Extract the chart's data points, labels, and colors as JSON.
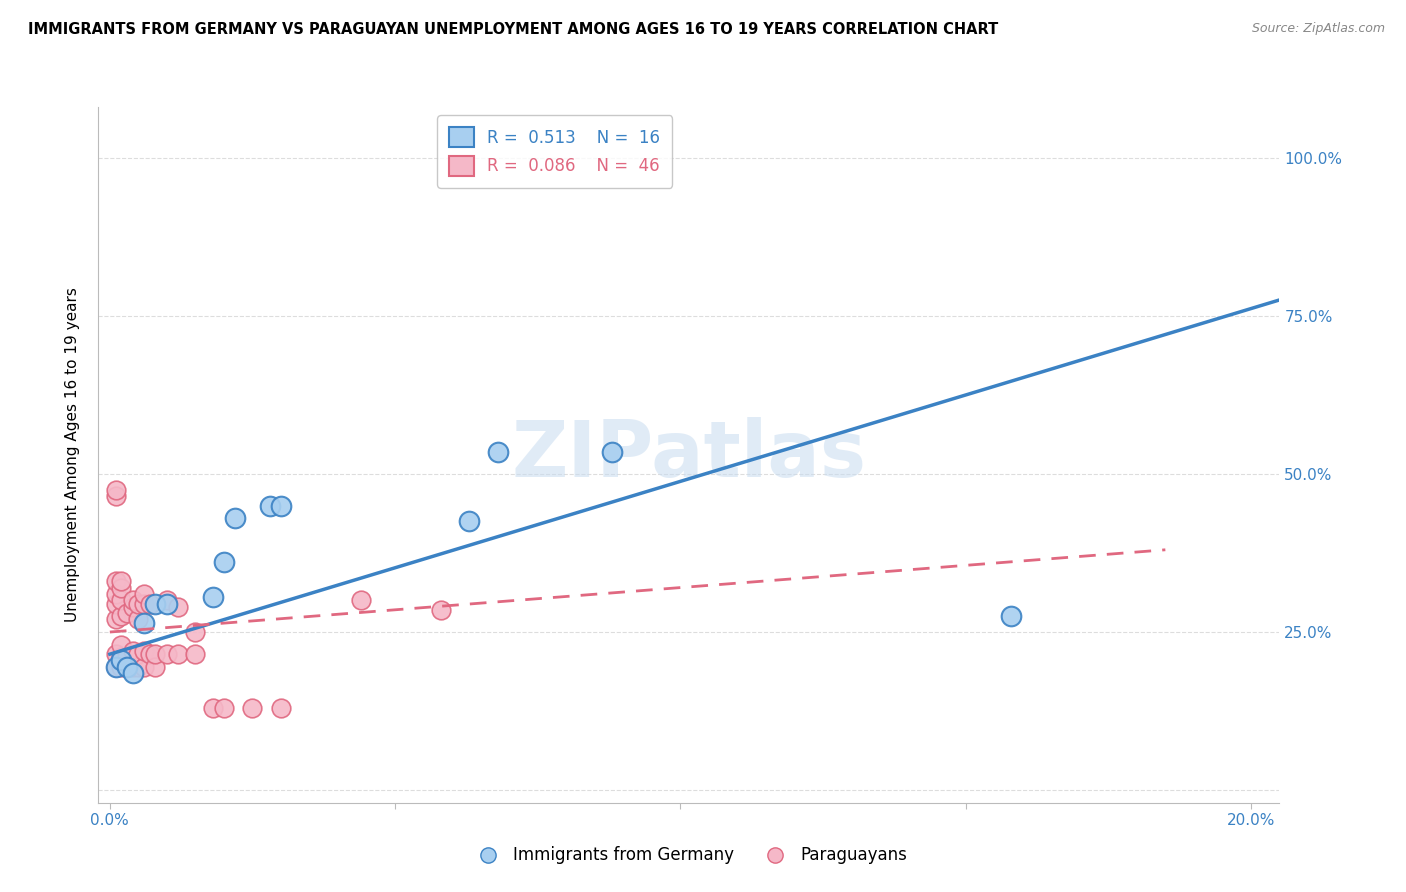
{
  "title": "IMMIGRANTS FROM GERMANY VS PARAGUAYAN UNEMPLOYMENT AMONG AGES 16 TO 19 YEARS CORRELATION CHART",
  "source": "Source: ZipAtlas.com",
  "ylabel": "Unemployment Among Ages 16 to 19 years",
  "x_ticks": [
    0.0,
    0.05,
    0.1,
    0.15,
    0.2
  ],
  "x_tick_labels": [
    "0.0%",
    "",
    "",
    "",
    "20.0%"
  ],
  "y_ticks": [
    0.0,
    0.25,
    0.5,
    0.75,
    1.0
  ],
  "y_tick_labels_right": [
    "",
    "25.0%",
    "50.0%",
    "75.0%",
    "100.0%"
  ],
  "xlim": [
    -0.002,
    0.205
  ],
  "ylim": [
    -0.02,
    1.08
  ],
  "legend1_R": "0.513",
  "legend1_N": "16",
  "legend2_R": "0.086",
  "legend2_N": "46",
  "legend_labels": [
    "Immigrants from Germany",
    "Paraguayans"
  ],
  "blue_color": "#A8CFF0",
  "pink_color": "#F5B8C8",
  "trendline_blue": "#3B82C4",
  "trendline_pink": "#E06880",
  "watermark": "ZIPatlas",
  "blue_scatter": [
    [
      0.001,
      0.195
    ],
    [
      0.002,
      0.205
    ],
    [
      0.003,
      0.195
    ],
    [
      0.004,
      0.185
    ],
    [
      0.006,
      0.265
    ],
    [
      0.008,
      0.295
    ],
    [
      0.01,
      0.295
    ],
    [
      0.018,
      0.305
    ],
    [
      0.02,
      0.36
    ],
    [
      0.022,
      0.43
    ],
    [
      0.028,
      0.45
    ],
    [
      0.03,
      0.45
    ],
    [
      0.063,
      0.425
    ],
    [
      0.068,
      0.535
    ],
    [
      0.088,
      0.535
    ],
    [
      0.158,
      0.275
    ]
  ],
  "pink_scatter": [
    [
      0.001,
      0.195
    ],
    [
      0.001,
      0.215
    ],
    [
      0.001,
      0.27
    ],
    [
      0.001,
      0.295
    ],
    [
      0.001,
      0.31
    ],
    [
      0.001,
      0.33
    ],
    [
      0.001,
      0.465
    ],
    [
      0.001,
      0.475
    ],
    [
      0.002,
      0.195
    ],
    [
      0.002,
      0.21
    ],
    [
      0.002,
      0.23
    ],
    [
      0.002,
      0.275
    ],
    [
      0.002,
      0.3
    ],
    [
      0.002,
      0.32
    ],
    [
      0.002,
      0.33
    ],
    [
      0.003,
      0.195
    ],
    [
      0.003,
      0.21
    ],
    [
      0.003,
      0.28
    ],
    [
      0.004,
      0.195
    ],
    [
      0.004,
      0.22
    ],
    [
      0.004,
      0.29
    ],
    [
      0.004,
      0.3
    ],
    [
      0.005,
      0.195
    ],
    [
      0.005,
      0.215
    ],
    [
      0.005,
      0.27
    ],
    [
      0.005,
      0.295
    ],
    [
      0.006,
      0.195
    ],
    [
      0.006,
      0.22
    ],
    [
      0.006,
      0.295
    ],
    [
      0.006,
      0.31
    ],
    [
      0.007,
      0.215
    ],
    [
      0.007,
      0.295
    ],
    [
      0.008,
      0.195
    ],
    [
      0.008,
      0.215
    ],
    [
      0.01,
      0.215
    ],
    [
      0.01,
      0.3
    ],
    [
      0.012,
      0.215
    ],
    [
      0.012,
      0.29
    ],
    [
      0.015,
      0.215
    ],
    [
      0.015,
      0.25
    ],
    [
      0.018,
      0.13
    ],
    [
      0.02,
      0.13
    ],
    [
      0.025,
      0.13
    ],
    [
      0.03,
      0.13
    ],
    [
      0.044,
      0.3
    ],
    [
      0.058,
      0.285
    ]
  ],
  "blue_trend_x": [
    0.0,
    0.205
  ],
  "blue_trend_y": [
    0.215,
    0.775
  ],
  "pink_trend_x": [
    0.0,
    0.185
  ],
  "pink_trend_y": [
    0.25,
    0.38
  ],
  "axis_color": "#BBBBBB",
  "grid_color": "#DDDDDD",
  "tick_color_blue": "#3B82C4",
  "background_color": "#FFFFFF"
}
